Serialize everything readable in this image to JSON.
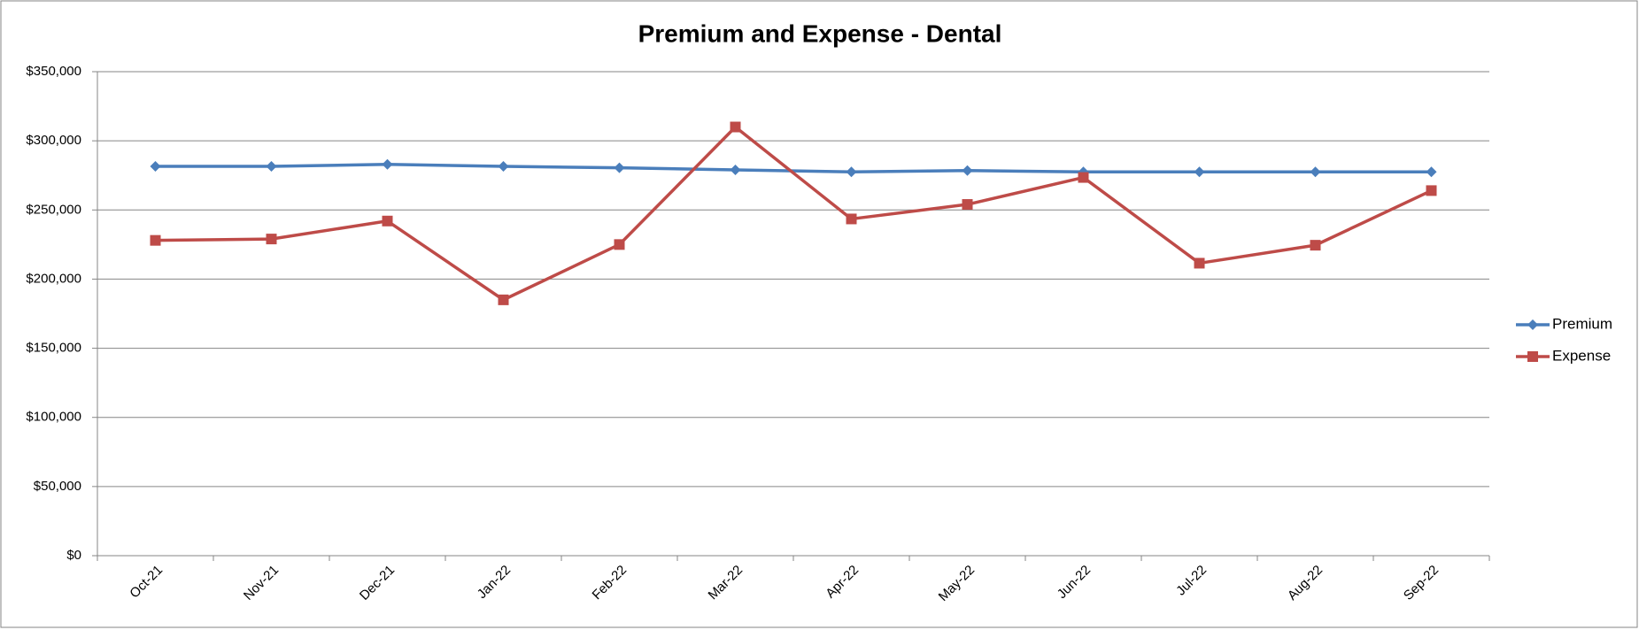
{
  "chart_data": {
    "type": "line",
    "title": "Premium and Expense - Dental",
    "categories": [
      "Oct-21",
      "Nov-21",
      "Dec-21",
      "Jan-22",
      "Feb-22",
      "Mar-22",
      "Apr-22",
      "May-22",
      "Jun-22",
      "Jul-22",
      "Aug-22",
      "Sep-22"
    ],
    "series": [
      {
        "name": "Premium",
        "color": "#4a7ebb",
        "marker": "diamond",
        "values": [
          281500,
          281500,
          283000,
          281500,
          280500,
          279000,
          277500,
          278500,
          277500,
          277500,
          277500,
          277500
        ]
      },
      {
        "name": "Expense",
        "color": "#be4b48",
        "marker": "square",
        "values": [
          228000,
          229000,
          242000,
          185000,
          225000,
          310000,
          243500,
          254000,
          273500,
          211500,
          224500,
          264000
        ]
      }
    ],
    "ylim": [
      0,
      350000
    ],
    "yticks": [
      {
        "value": 0,
        "label": "$0"
      },
      {
        "value": 50000,
        "label": "$50,000"
      },
      {
        "value": 100000,
        "label": "$100,000"
      },
      {
        "value": 150000,
        "label": "$150,000"
      },
      {
        "value": 200000,
        "label": "$200,000"
      },
      {
        "value": 250000,
        "label": "$250,000"
      },
      {
        "value": 300000,
        "label": "$300,000"
      },
      {
        "value": 350000,
        "label": "$350,000"
      }
    ],
    "grid": true,
    "legend": "right"
  }
}
